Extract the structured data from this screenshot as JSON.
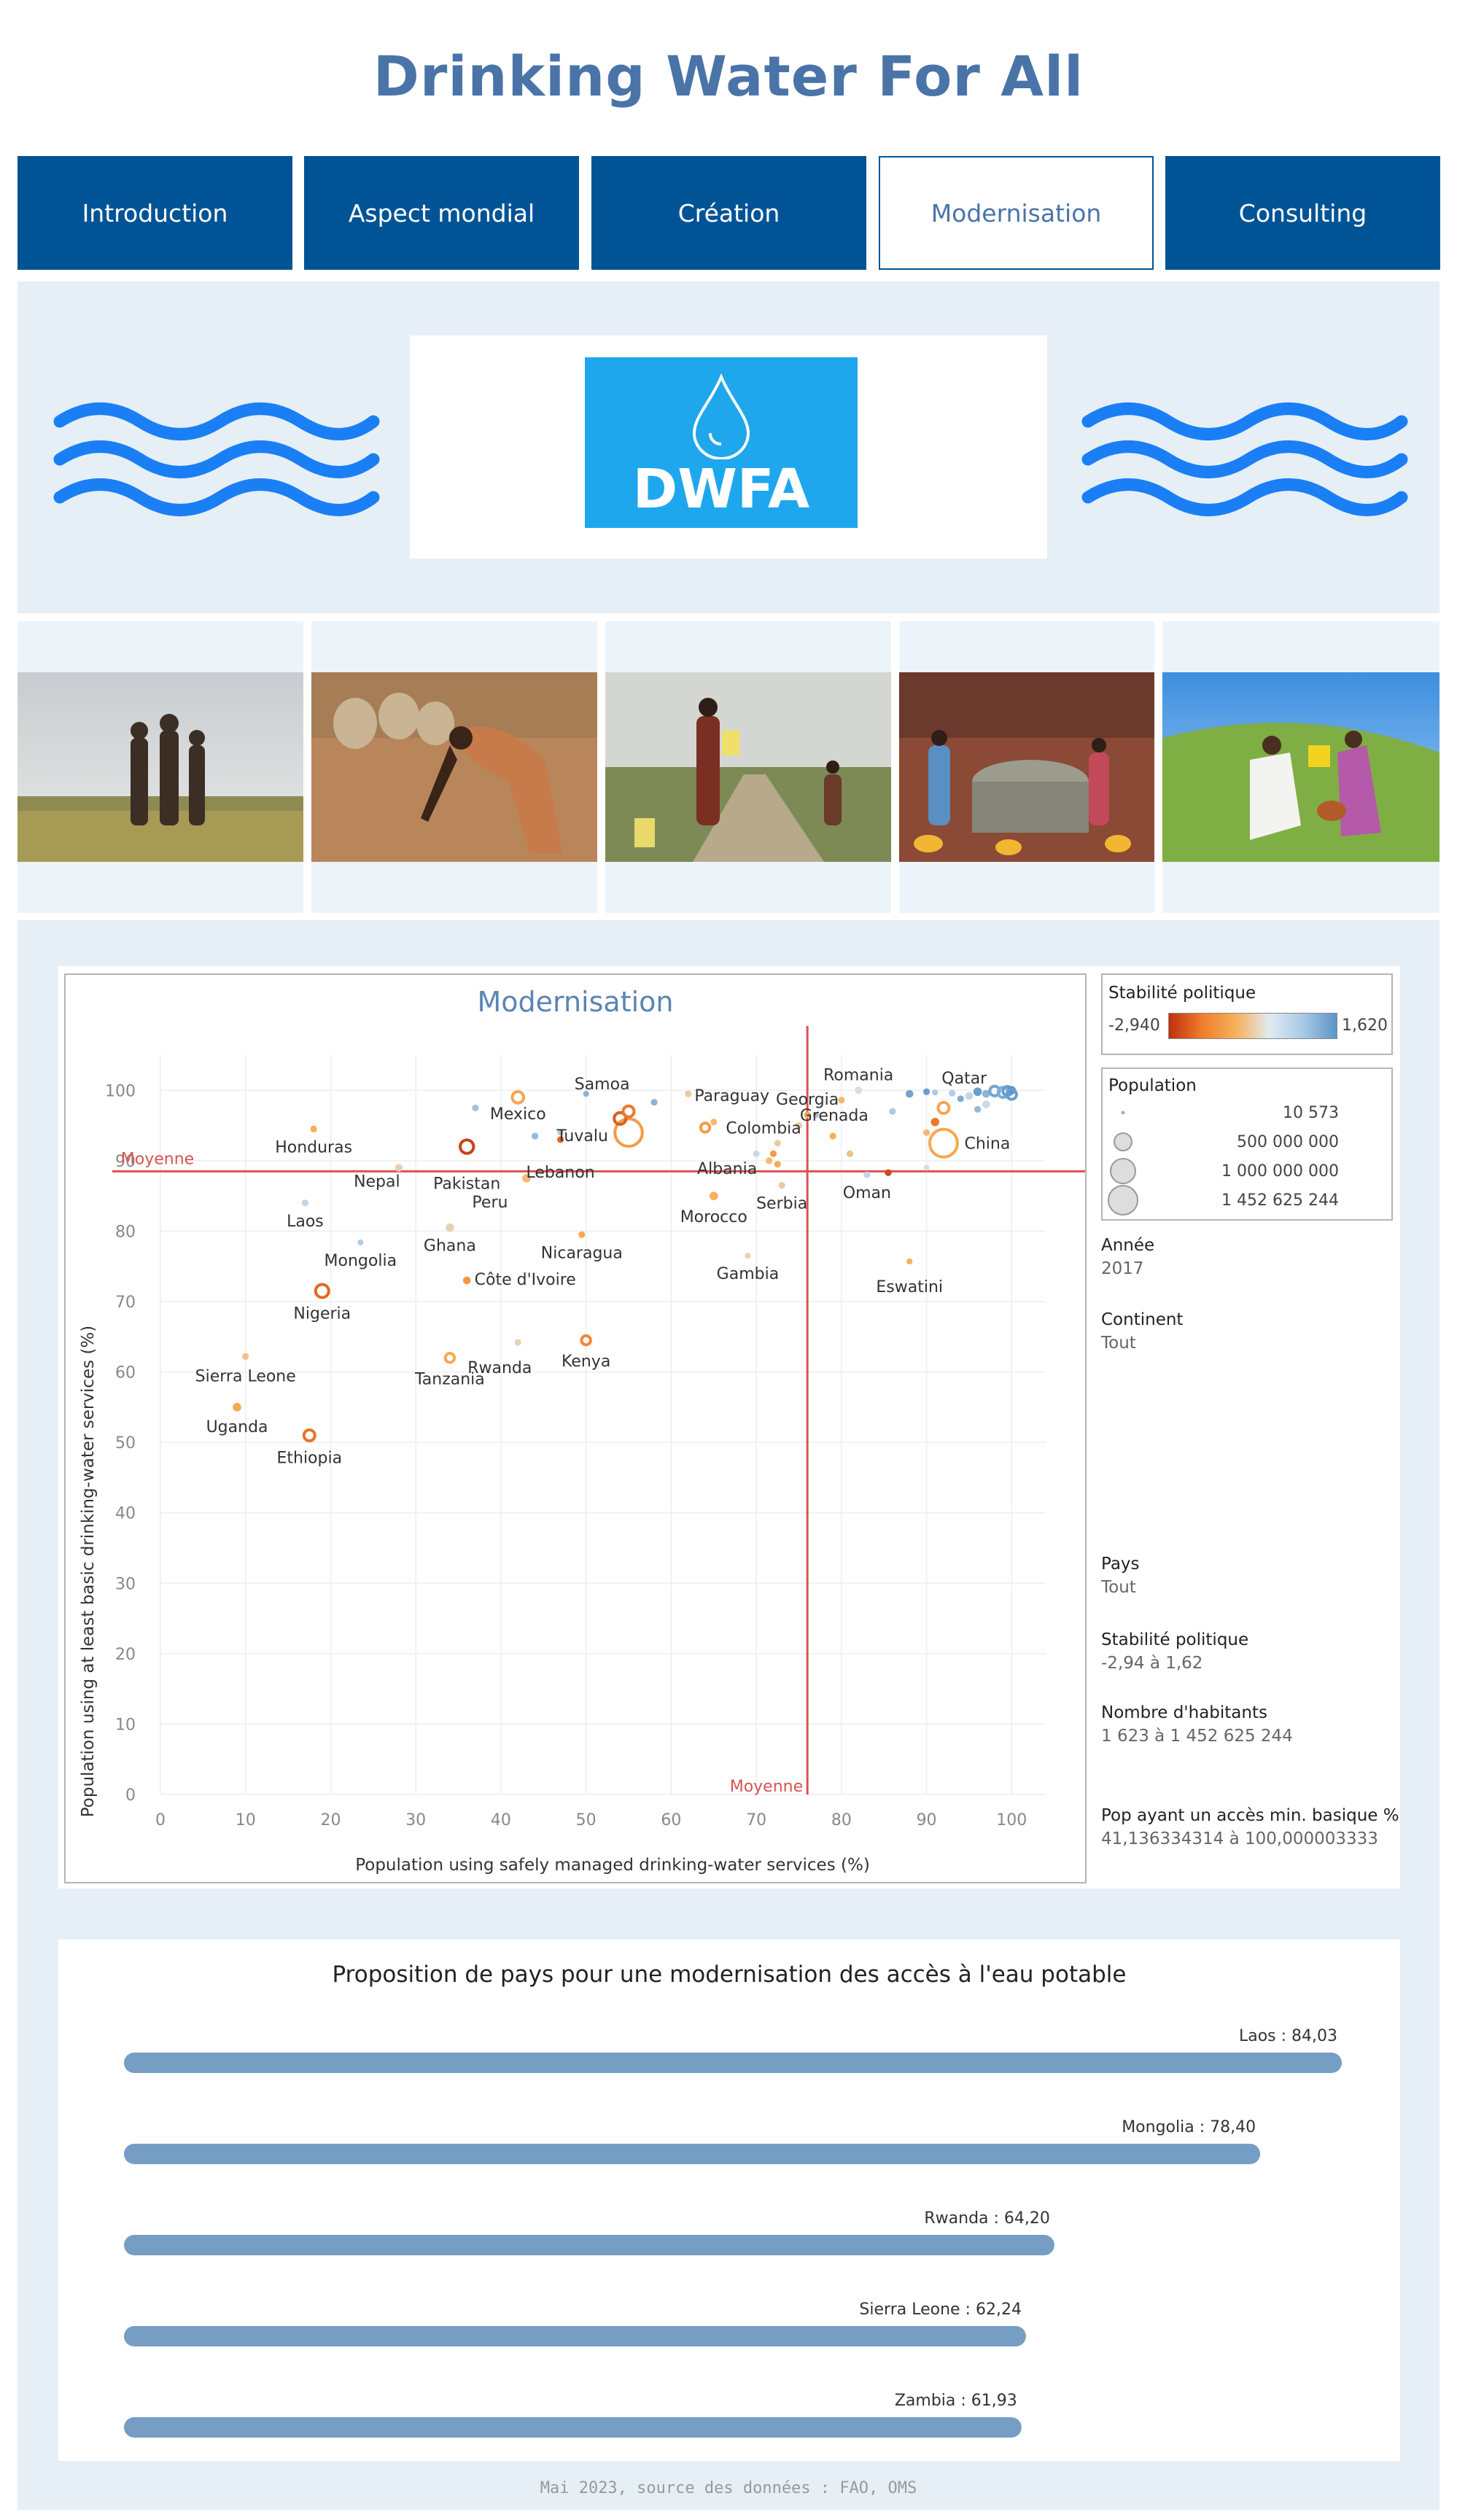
{
  "page": {
    "title": "Drinking Water For All"
  },
  "nav": {
    "items": [
      "Introduction",
      "Aspect mondial",
      "Création",
      "Modernisation",
      "Consulting"
    ],
    "active": "Modernisation"
  },
  "logo": {
    "text": "DWFA"
  },
  "colors": {
    "nav": "#005496",
    "title": "#4a74a8",
    "logo": "#1fa7ee",
    "wave": "#1a7ff5",
    "mean_line": "#d9534f",
    "bar": "#769dc4"
  },
  "photos": [
    "children-in-field-photo",
    "woman-harvesting-photo",
    "water-carriers-road-photo",
    "village-well-photo",
    "women-pouring-water-photo"
  ],
  "chart_data": [
    {
      "type": "scatter",
      "title": "Modernisation",
      "xlabel": "Population using safely managed drinking-water services (%)",
      "ylabel": "Population using at least basic drinking-water services (%)",
      "xlim": [
        0,
        104
      ],
      "ylim": [
        0,
        105
      ],
      "x_ticks": [
        0,
        10,
        20,
        30,
        40,
        50,
        60,
        70,
        80,
        90,
        100
      ],
      "y_ticks": [
        0,
        10,
        20,
        30,
        40,
        50,
        60,
        70,
        80,
        90,
        100
      ],
      "mean_x": 76,
      "mean_y": 88.5,
      "mean_label": "Moyenne",
      "grid": true,
      "labeled_points": [
        {
          "name": "Honduras",
          "x": 18,
          "y": 94.5,
          "c": -0.4,
          "s": 0.01
        },
        {
          "name": "Pakistan",
          "x": 36,
          "y": 92,
          "c": -2.6,
          "s": 0.15
        },
        {
          "name": "Nepal",
          "x": 28,
          "y": 89,
          "c": 0.1,
          "s": 0.02
        },
        {
          "name": "Mexico",
          "x": 42,
          "y": 99,
          "c": -0.6,
          "s": 0.09
        },
        {
          "name": "Samoa",
          "x": 50,
          "y": 99.5,
          "c": 1.2,
          "s": 0.005
        },
        {
          "name": "Tuvalu",
          "x": 47,
          "y": 94,
          "c": 0.9,
          "s": 0.005
        },
        {
          "name": "Lebanon",
          "x": 47,
          "y": 93,
          "c": -1.9,
          "s": 0.01
        },
        {
          "name": "Peru",
          "x": 43,
          "y": 87.5,
          "c": -0.2,
          "s": 0.03
        },
        {
          "name": "Laos",
          "x": 17,
          "y": 84,
          "c": 0.6,
          "s": 0.01
        },
        {
          "name": "Mongolia",
          "x": 23.5,
          "y": 78.4,
          "c": 0.8,
          "s": 0.005
        },
        {
          "name": "Ghana",
          "x": 34,
          "y": 80.5,
          "c": 0.1,
          "s": 0.03
        },
        {
          "name": "Nicaragua",
          "x": 49.5,
          "y": 79.5,
          "c": -0.5,
          "s": 0.01
        },
        {
          "name": "Côte d'Ivoire",
          "x": 36,
          "y": 73,
          "c": -0.9,
          "s": 0.02
        },
        {
          "name": "Nigeria",
          "x": 19,
          "y": 71.5,
          "c": -1.9,
          "s": 0.14
        },
        {
          "name": "Rwanda",
          "x": 42,
          "y": 64.2,
          "c": 0.1,
          "s": 0.01
        },
        {
          "name": "Kenya",
          "x": 50,
          "y": 64.5,
          "c": -1.3,
          "s": 0.04
        },
        {
          "name": "Tanzania",
          "x": 34,
          "y": 62,
          "c": -0.5,
          "s": 0.04
        },
        {
          "name": "Sierra Leone",
          "x": 10,
          "y": 62.2,
          "c": -0.1,
          "s": 0.01
        },
        {
          "name": "Uganda",
          "x": 9,
          "y": 55,
          "c": -0.5,
          "s": 0.03
        },
        {
          "name": "Ethiopia",
          "x": 17.5,
          "y": 51,
          "c": -1.7,
          "s": 0.08
        },
        {
          "name": "Paraguay",
          "x": 62,
          "y": 99.5,
          "c": 0.0,
          "s": 0.01
        },
        {
          "name": "Georgia",
          "x": 76,
          "y": 96.5,
          "c": -0.6,
          "s": 0.01
        },
        {
          "name": "Romania",
          "x": 82,
          "y": 100,
          "c": 0.4,
          "s": 0.015
        },
        {
          "name": "Qatar",
          "x": 91,
          "y": 99.7,
          "c": 0.9,
          "s": 0.005
        },
        {
          "name": "Colombia",
          "x": 64,
          "y": 94.7,
          "c": -0.8,
          "s": 0.04
        },
        {
          "name": "Grenada",
          "x": 77,
          "y": 96.5,
          "c": 1.0,
          "s": 0.005
        },
        {
          "name": "Albania",
          "x": 70,
          "y": 91,
          "c": 0.5,
          "s": 0.01
        },
        {
          "name": "China",
          "x": 92,
          "y": 92.5,
          "c": -0.5,
          "s": 1.0
        },
        {
          "name": "Morocco",
          "x": 65,
          "y": 85,
          "c": -0.3,
          "s": 0.03
        },
        {
          "name": "Serbia",
          "x": 73,
          "y": 86.5,
          "c": 0.0,
          "s": 0.01
        },
        {
          "name": "Oman",
          "x": 83,
          "y": 88,
          "c": 0.6,
          "s": 0.01
        },
        {
          "name": "Gambia",
          "x": 69,
          "y": 76.5,
          "c": 0.1,
          "s": 0.005
        },
        {
          "name": "Eswatini",
          "x": 88,
          "y": 75.7,
          "c": -0.3,
          "s": 0.005
        }
      ],
      "other_points": [
        {
          "x": 55,
          "y": 94,
          "c": -0.8,
          "s": 0.98
        },
        {
          "x": 54,
          "y": 96,
          "c": -2.1,
          "s": 0.1
        },
        {
          "x": 55,
          "y": 97,
          "c": -1.6,
          "s": 0.08
        },
        {
          "x": 37,
          "y": 97.5,
          "c": 1.0,
          "s": 0.01
        },
        {
          "x": 44,
          "y": 93.5,
          "c": 1.1,
          "s": 0.01
        },
        {
          "x": 58,
          "y": 98.3,
          "c": 1.2,
          "s": 0.01
        },
        {
          "x": 88,
          "y": 99.5,
          "c": 1.4,
          "s": 0.02
        },
        {
          "x": 90,
          "y": 99.8,
          "c": 1.5,
          "s": 0.01
        },
        {
          "x": 93,
          "y": 99.6,
          "c": 0.8,
          "s": 0.01
        },
        {
          "x": 94,
          "y": 98.8,
          "c": 1.3,
          "s": 0.01
        },
        {
          "x": 95,
          "y": 99.2,
          "c": 0.6,
          "s": 0.02
        },
        {
          "x": 96,
          "y": 99.8,
          "c": 1.5,
          "s": 0.03
        },
        {
          "x": 97,
          "y": 99.5,
          "c": 1.2,
          "s": 0.02
        },
        {
          "x": 98,
          "y": 99.9,
          "c": 1.4,
          "s": 0.05
        },
        {
          "x": 99,
          "y": 99.7,
          "c": 1.3,
          "s": 0.06
        },
        {
          "x": 99.5,
          "y": 99.9,
          "c": 1.5,
          "s": 0.04
        },
        {
          "x": 100,
          "y": 100,
          "c": 1.6,
          "s": 0.03
        },
        {
          "x": 100,
          "y": 99.4,
          "c": 1.5,
          "s": 0.05
        },
        {
          "x": 97,
          "y": 98,
          "c": 0.5,
          "s": 0.02
        },
        {
          "x": 96,
          "y": 97.3,
          "c": 1.1,
          "s": 0.01
        },
        {
          "x": 92,
          "y": 97.5,
          "c": -0.6,
          "s": 0.08
        },
        {
          "x": 91,
          "y": 95.5,
          "c": -1.6,
          "s": 0.03
        },
        {
          "x": 90,
          "y": 94,
          "c": -0.2,
          "s": 0.01
        },
        {
          "x": 86,
          "y": 97,
          "c": 0.9,
          "s": 0.01
        },
        {
          "x": 80,
          "y": 98.6,
          "c": -0.2,
          "s": 0.01
        },
        {
          "x": 79,
          "y": 93.5,
          "c": -0.3,
          "s": 0.01
        },
        {
          "x": 81,
          "y": 91,
          "c": -0.1,
          "s": 0.01
        },
        {
          "x": 72.5,
          "y": 92.5,
          "c": 0.0,
          "s": 0.01
        },
        {
          "x": 72,
          "y": 91,
          "c": -0.8,
          "s": 0.01
        },
        {
          "x": 71.5,
          "y": 90,
          "c": -0.2,
          "s": 0.01
        },
        {
          "x": 72.5,
          "y": 89.5,
          "c": -0.4,
          "s": 0.01
        },
        {
          "x": 85.5,
          "y": 88.3,
          "c": -2.5,
          "s": 0.01
        },
        {
          "x": 90,
          "y": 89,
          "c": 0.4,
          "s": 0.005
        },
        {
          "x": 65,
          "y": 95.5,
          "c": -0.2,
          "s": 0.01
        },
        {
          "x": 75,
          "y": 95,
          "c": 0.0,
          "s": 0.01
        }
      ]
    },
    {
      "type": "bar",
      "orientation": "horizontal",
      "title": "Proposition de pays pour une modernisation des accès à l'eau potable",
      "categories": [
        "Laos",
        "Mongolia",
        "Rwanda",
        "Sierra Leone",
        "Zambia"
      ],
      "values": [
        84.03,
        78.4,
        64.2,
        62.24,
        61.93
      ],
      "labels": [
        "Laos : 84,03",
        "Mongolia : 78,40",
        "Rwanda : 64,20",
        "Sierra Leone : 62,24",
        "Zambia : 61,93"
      ],
      "xlim": [
        0,
        84.03
      ]
    }
  ],
  "legend": {
    "color_title": "Stabilité politique",
    "color_min": "-2,940",
    "color_max": "1,620",
    "color_range": [
      -2.94,
      1.62
    ],
    "size_title": "Population",
    "size_entries": [
      "10 573",
      "500 000 000",
      "1 000 000 000",
      "1 452 625 244"
    ]
  },
  "filters": [
    {
      "label": "Année",
      "value": "2017"
    },
    {
      "label": "Continent",
      "value": "Tout"
    },
    {
      "label": "Pays",
      "value": "Tout"
    },
    {
      "label": "Stabilité politique",
      "value": "-2,94 à 1,62"
    },
    {
      "label": "Nombre d'habitants",
      "value": "1 623 à 1 452 625 244"
    },
    {
      "label": "Pop ayant un accès min. basique %",
      "value": "41,136334314 à 100,000003333"
    }
  ],
  "footer": "Mai 2023, source des données : FAO, OMS"
}
